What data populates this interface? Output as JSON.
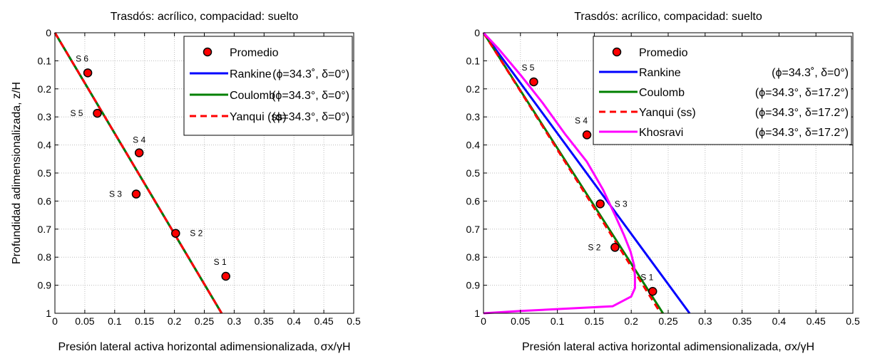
{
  "chart_data": [
    {
      "type": "line",
      "title": "Trasdós: acrílico, compacidad: suelto",
      "xlabel": "Presión lateral activa horizontal adimensionalizada, σx/γH",
      "ylabel": "Profundidad adimensionalizada, z/H",
      "xlim": [
        0,
        0.5
      ],
      "ylim": [
        0,
        1
      ],
      "y_reversed": true,
      "grid": true,
      "legend_position": "top-right",
      "x_ticks": [
        "0",
        "0.05",
        "0.1",
        "0.15",
        "0.2",
        "0.25",
        "0.3",
        "0.35",
        "0.4",
        "0.45",
        "0.5"
      ],
      "y_ticks": [
        "0",
        "0.1",
        "0.2",
        "0.3",
        "0.4",
        "0.5",
        "0.6",
        "0.7",
        "0.8",
        "0.9",
        "1"
      ],
      "points": {
        "name": "Promedio",
        "color": "#ff0000",
        "data": [
          {
            "label": "S 1",
            "x": 0.286,
            "y": 0.868
          },
          {
            "label": "S 2",
            "x": 0.202,
            "y": 0.715
          },
          {
            "label": "S 3",
            "x": 0.136,
            "y": 0.575
          },
          {
            "label": "S 4",
            "x": 0.141,
            "y": 0.428
          },
          {
            "label": "S 5",
            "x": 0.071,
            "y": 0.287
          },
          {
            "label": "S 6",
            "x": 0.055,
            "y": 0.143
          }
        ]
      },
      "series": [
        {
          "name": "Rankine",
          "params": "(ϕ=34.3˚, δ=0°)",
          "color": "#0000ff",
          "dash": "solid",
          "x": [
            0,
            0.279
          ],
          "y": [
            0,
            1
          ]
        },
        {
          "name": "Coulomb",
          "params": "(ϕ=34.3°, δ=0°)",
          "color": "#008000",
          "dash": "solid",
          "x": [
            0,
            0.279
          ],
          "y": [
            0,
            1
          ]
        },
        {
          "name": "Yanqui (ss)",
          "params": "(ϕ=34.3°, δ=0°)",
          "color": "#ff0000",
          "dash": "dashed",
          "x": [
            0,
            0.279
          ],
          "y": [
            0,
            1
          ]
        }
      ]
    },
    {
      "type": "line",
      "title": "Trasdós: acrílico, compacidad: suelto",
      "xlabel": "Presión lateral activa horizontal adimensionalizada, σx/γH",
      "ylabel": "",
      "xlim": [
        0,
        0.5
      ],
      "ylim": [
        0,
        1
      ],
      "y_reversed": true,
      "grid": true,
      "legend_position": "top-right",
      "x_ticks": [
        "0",
        "0.05",
        "0.1",
        "0.15",
        "0.2",
        "0.25",
        "0.3",
        "0.35",
        "0.4",
        "0.45",
        "0.5"
      ],
      "y_ticks": [
        "0",
        "0.1",
        "0.2",
        "0.3",
        "0.4",
        "0.5",
        "0.6",
        "0.7",
        "0.8",
        "0.9",
        "1"
      ],
      "points": {
        "name": "Promedio",
        "color": "#ff0000",
        "data": [
          {
            "label": "S 1",
            "x": 0.229,
            "y": 0.922
          },
          {
            "label": "S 2",
            "x": 0.178,
            "y": 0.765
          },
          {
            "label": "S 3",
            "x": 0.158,
            "y": 0.61
          },
          {
            "label": "S 4",
            "x": 0.14,
            "y": 0.364
          },
          {
            "label": "S 5",
            "x": 0.068,
            "y": 0.175
          }
        ]
      },
      "series": [
        {
          "name": "Rankine",
          "params": "(ϕ=34.3˚, δ=0°)",
          "color": "#0000ff",
          "dash": "solid",
          "x": [
            0,
            0.279
          ],
          "y": [
            0,
            1
          ]
        },
        {
          "name": "Coulomb",
          "params": "(ϕ=34.3°, δ=17.2°)",
          "color": "#008000",
          "dash": "solid",
          "x": [
            0,
            0.243
          ],
          "y": [
            0,
            1
          ]
        },
        {
          "name": "Yanqui (ss)",
          "params": "(ϕ=34.3°, δ=17.2°)",
          "color": "#ff0000",
          "dash": "dashed",
          "x": [
            0,
            0.24
          ],
          "y": [
            0,
            1
          ]
        },
        {
          "name": "Khosravi",
          "params": "(ϕ=34.3°, δ=17.2°)",
          "color": "#ff00ff",
          "dash": "solid",
          "x": [
            0,
            0.02,
            0.05,
            0.08,
            0.11,
            0.14,
            0.162,
            0.178,
            0.19,
            0.199,
            0.204,
            0.205,
            0.205,
            0.2,
            0.175,
            0.1,
            0.05,
            0
          ],
          "y": [
            0,
            0.056,
            0.15,
            0.25,
            0.36,
            0.46,
            0.56,
            0.65,
            0.72,
            0.78,
            0.83,
            0.87,
            0.91,
            0.94,
            0.975,
            0.985,
            0.992,
            1
          ]
        }
      ]
    }
  ]
}
